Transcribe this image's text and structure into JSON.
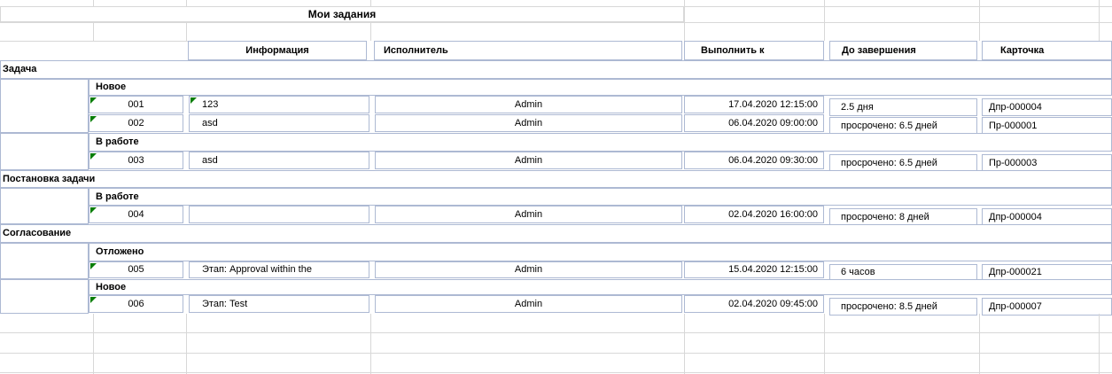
{
  "title": "Мои задания",
  "columns": {
    "info": "Информация",
    "executor": "Исполнитель",
    "due": "Выполнить к",
    "remaining": "До завершения",
    "card": "Карточка"
  },
  "groups": {
    "task": "Задача",
    "task_new": "Новое",
    "task_inwork": "В работе",
    "statement": "Постановка задачи",
    "statement_inwork": "В работе",
    "approval": "Согласование",
    "approval_postponed": "Отложено",
    "approval_new": "Новое"
  },
  "rows": [
    {
      "num": "001",
      "info": "123",
      "executor": "Admin",
      "due": "17.04.2020 12:15:00",
      "remaining": "2.5 дня",
      "card": "Дпр-000004"
    },
    {
      "num": "002",
      "info": "asd",
      "executor": "Admin",
      "due": "06.04.2020 09:00:00",
      "remaining": "просрочено: 6.5 дней",
      "card": "Пр-000001"
    },
    {
      "num": "003",
      "info": "asd",
      "executor": "Admin",
      "due": "06.04.2020 09:30:00",
      "remaining": "просрочено: 6.5 дней",
      "card": "Пр-000003"
    },
    {
      "num": "004",
      "info": "",
      "executor": "Admin",
      "due": "02.04.2020 16:00:00",
      "remaining": "просрочено: 8 дней",
      "card": "Дпр-000004"
    },
    {
      "num": "005",
      "info": "Этап: Approval within the",
      "executor": "Admin",
      "due": "15.04.2020 12:15:00",
      "remaining": "6 часов",
      "card": "Дпр-000021"
    },
    {
      "num": "006",
      "info": "Этап: Test",
      "executor": "Admin",
      "due": "02.04.2020 09:45:00",
      "remaining": "просрочено: 8.5 дней",
      "card": "Дпр-000007"
    }
  ],
  "icons": {
    "corner_marker": "green-corner-note-marker"
  },
  "colors": {
    "cell_border": "#adb9d3",
    "gridline": "#d8d8d8",
    "note_marker": "#077d07",
    "text": "#000000"
  }
}
